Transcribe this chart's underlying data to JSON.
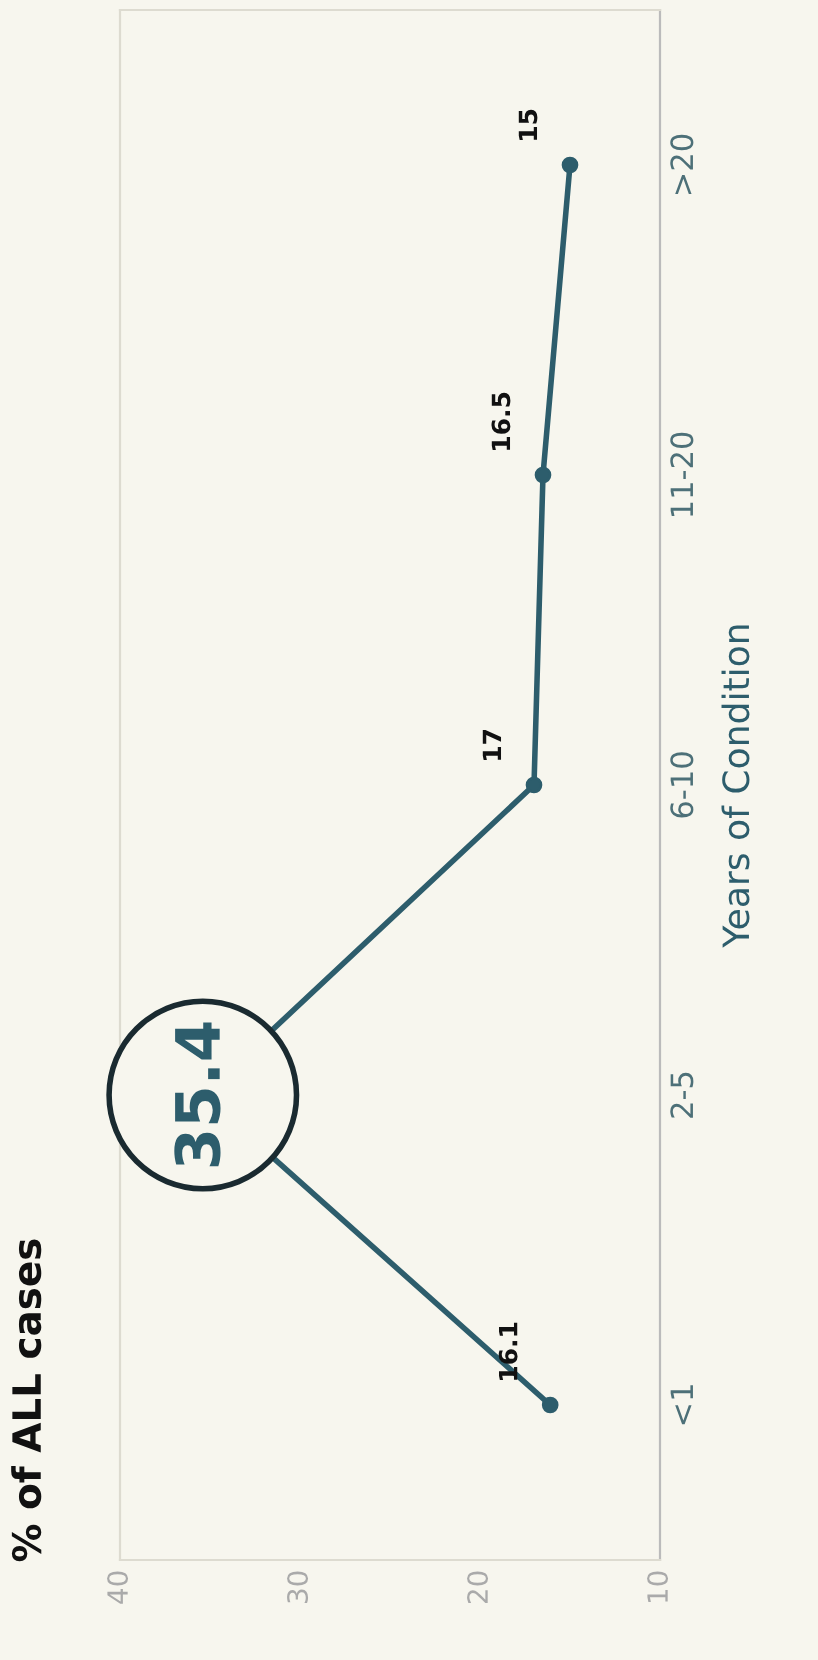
{
  "chart_data": {
    "type": "line",
    "orientation": "horizontal",
    "title": "% of ALL cases",
    "ylabel": "Years of Condition",
    "categories": [
      ">20",
      "11-20",
      "6-10",
      "2-5",
      "<1"
    ],
    "series": [
      {
        "color": "#2d5d6c",
        "values": [
          15,
          16.5,
          17,
          35.4,
          16.1
        ]
      }
    ],
    "xlim": [
      40,
      10
    ],
    "xticks": [
      40,
      30,
      20,
      10
    ],
    "data_labels": true,
    "marker": "circle",
    "line_style": "solid",
    "grid": false,
    "legend": false
  }
}
